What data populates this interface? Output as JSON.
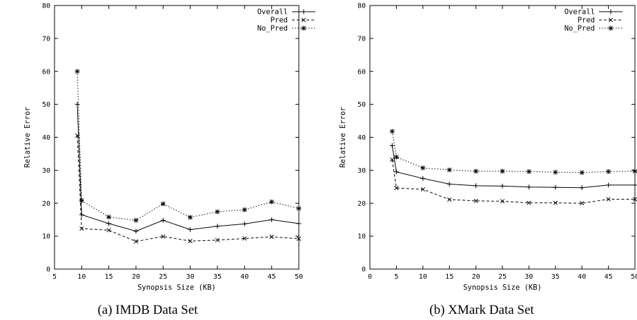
{
  "chart_data": [
    {
      "type": "line",
      "caption": "(a) IMDB Data Set",
      "xlabel": "Synopsis Size (KB)",
      "ylabel": "Relative Error",
      "xlim": [
        5,
        50
      ],
      "ylim": [
        0,
        80
      ],
      "xticks": [
        5,
        10,
        15,
        20,
        25,
        30,
        35,
        40,
        45,
        50
      ],
      "yticks": [
        0,
        10,
        20,
        30,
        40,
        50,
        60,
        70,
        80
      ],
      "legend_position": "top-right",
      "series": [
        {
          "name": "Overall",
          "marker": "plus",
          "dash": "solid",
          "x": [
            9.2,
            10,
            15,
            20,
            25,
            30,
            35,
            40,
            45,
            50
          ],
          "y": [
            50,
            16.5,
            13.8,
            11.5,
            14.8,
            12,
            13,
            13.7,
            15,
            13.8
          ]
        },
        {
          "name": "Pred",
          "marker": "cross",
          "dash": "dashed",
          "x": [
            9.2,
            10,
            15,
            20,
            25,
            30,
            35,
            40,
            45,
            50
          ],
          "y": [
            40.5,
            12.3,
            11.8,
            8.4,
            9.9,
            8.5,
            8.8,
            9.3,
            9.8,
            9.2
          ]
        },
        {
          "name": "No_Pred",
          "marker": "star",
          "dash": "dotted",
          "x": [
            9.2,
            10,
            15,
            20,
            25,
            30,
            35,
            40,
            45,
            50
          ],
          "y": [
            60,
            20.8,
            15.8,
            14.8,
            19.8,
            15.7,
            17.4,
            18,
            20.4,
            18.4
          ]
        }
      ]
    },
    {
      "type": "line",
      "caption": "(b) XMark Data Set",
      "xlabel": "Synopsis Size (KB)",
      "ylabel": "Relative Error",
      "xlim": [
        0,
        50
      ],
      "ylim": [
        0,
        80
      ],
      "xticks": [
        0,
        5,
        10,
        15,
        20,
        25,
        30,
        35,
        40,
        45,
        50
      ],
      "yticks": [
        0,
        10,
        20,
        30,
        40,
        50,
        60,
        70,
        80
      ],
      "legend_position": "top-right",
      "series": [
        {
          "name": "Overall",
          "marker": "plus",
          "dash": "solid",
          "x": [
            4.2,
            5,
            10,
            15,
            20,
            25,
            30,
            35,
            40,
            45,
            50
          ],
          "y": [
            37.5,
            29.5,
            27.5,
            25.8,
            25.3,
            25.2,
            24.9,
            24.8,
            24.7,
            25.5,
            25.5
          ]
        },
        {
          "name": "Pred",
          "marker": "cross",
          "dash": "dashed",
          "x": [
            4.2,
            5,
            10,
            15,
            20,
            25,
            30,
            35,
            40,
            45,
            50
          ],
          "y": [
            33.2,
            24.6,
            24.2,
            21.1,
            20.7,
            20.6,
            20.1,
            20.1,
            20,
            21.2,
            21.2
          ]
        },
        {
          "name": "No_Pred",
          "marker": "star",
          "dash": "dotted",
          "x": [
            4.2,
            5,
            10,
            15,
            20,
            25,
            30,
            35,
            40,
            45,
            50
          ],
          "y": [
            41.8,
            34,
            30.7,
            30.1,
            29.7,
            29.7,
            29.6,
            29.4,
            29.3,
            29.6,
            29.7
          ]
        }
      ]
    }
  ]
}
